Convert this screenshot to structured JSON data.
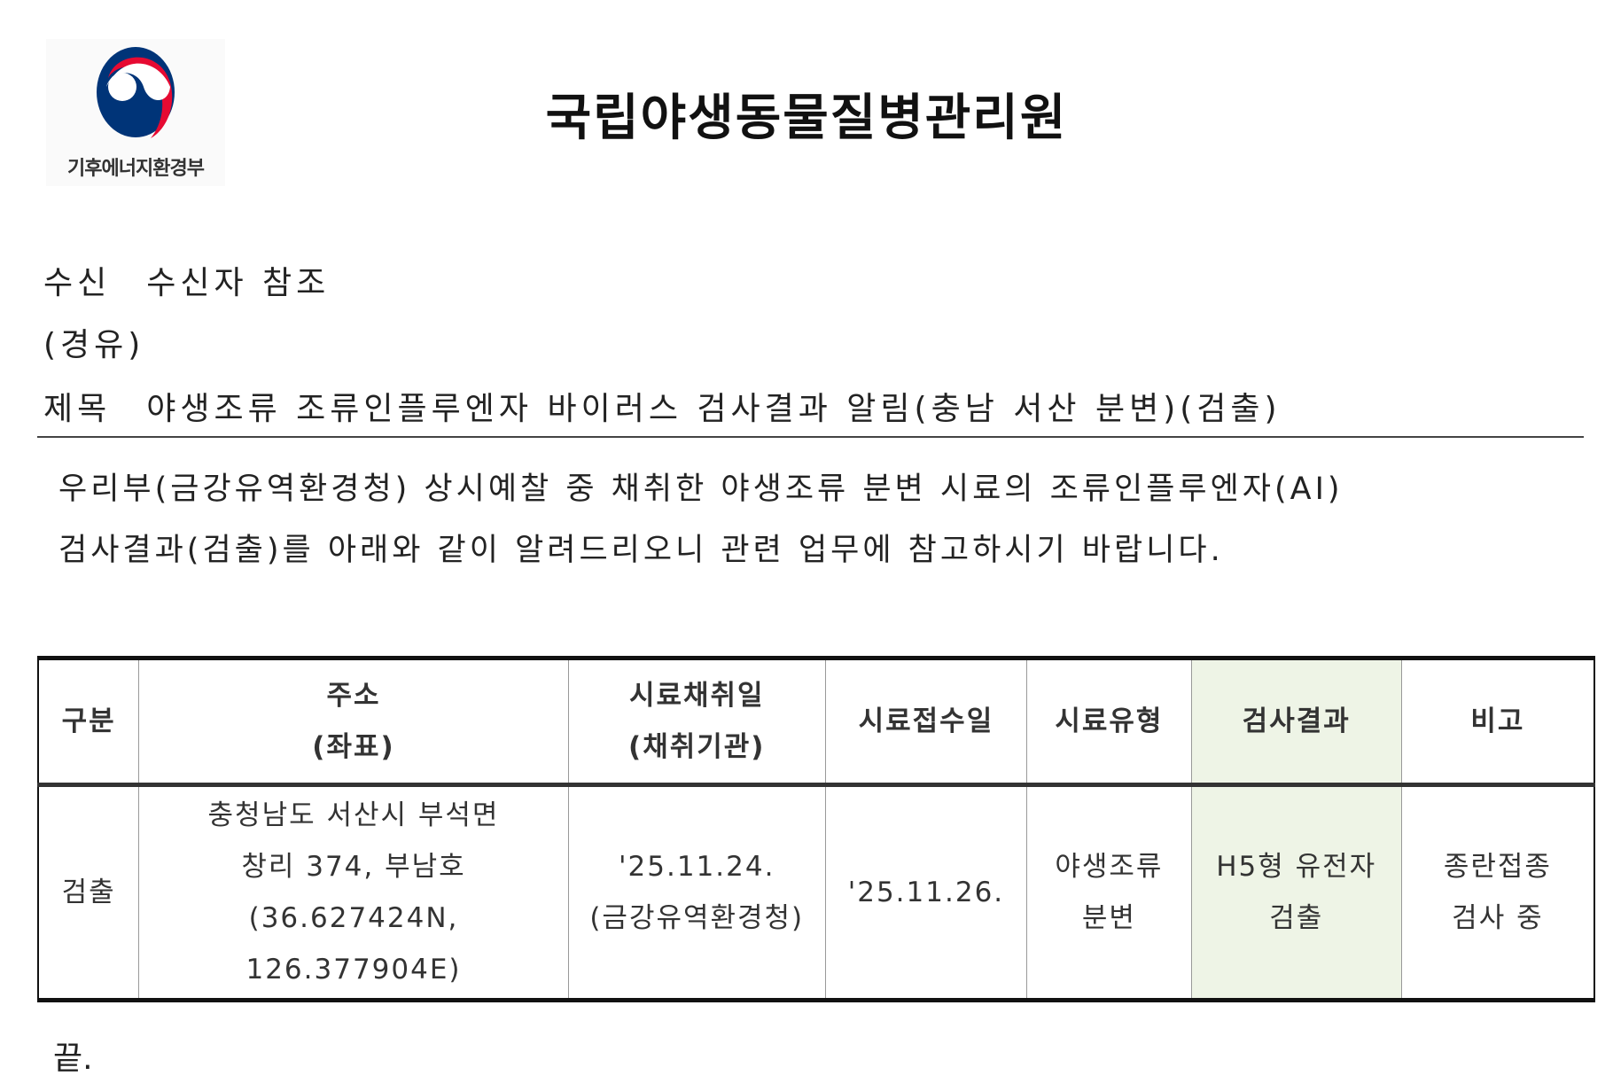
{
  "logo": {
    "text": "기후에너지환경부",
    "colors": {
      "blue": "#003478",
      "red": "#e60a32"
    }
  },
  "header": {
    "title": "국립야생동물질병관리원"
  },
  "meta": {
    "recipient_label": "수신",
    "recipient_value": "수신자 참조",
    "via_label": "(경유)",
    "subject_label": "제목",
    "subject_value": "야생조류 조류인플루엔자 바이러스 검사결과 알림(충남 서산 분변)(검출)"
  },
  "body": {
    "lines": [
      "우리부(금강유역환경청) 상시예찰 중 채취한 야생조류 분변 시료의 조류인플루엔자(AI)",
      "검사결과(검출)를 아래와 같이 알려드리오니 관련 업무에 참고하시기 바랍니다."
    ]
  },
  "table": {
    "headers": [
      [
        "구분"
      ],
      [
        "주소",
        "(좌표)"
      ],
      [
        "시료채취일",
        "(채취기관)"
      ],
      [
        "시료접수일"
      ],
      [
        "시료유형"
      ],
      [
        "검사결과"
      ],
      [
        "비고"
      ]
    ],
    "row": [
      [
        "검출"
      ],
      [
        "충청남도 서산시 부석면",
        "창리 374, 부남호",
        "(36.627424N, 126.377904E)"
      ],
      [
        "'25.11.24.",
        "(금강유역환경청)"
      ],
      [
        "'25.11.26."
      ],
      [
        "야생조류",
        "분변"
      ],
      [
        "H5형 유전자",
        "검출"
      ],
      [
        "종란접종",
        "검사 중"
      ]
    ],
    "highlight_color": "#eef4e6"
  },
  "footer": {
    "end": "끝."
  }
}
